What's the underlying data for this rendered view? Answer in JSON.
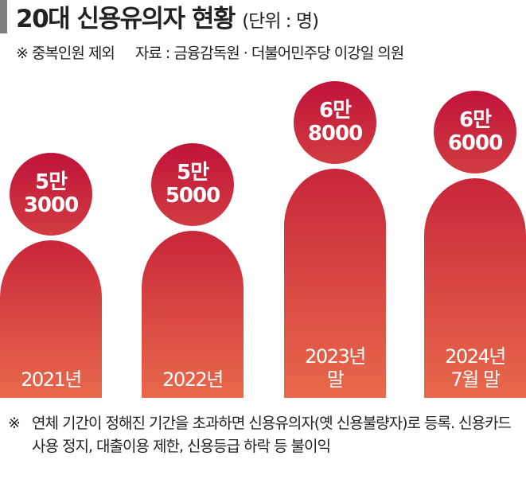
{
  "header": {
    "title": "20대 신용유의자 현황",
    "unit": "(단위 : 명)",
    "note": "※ 중복인원 제외",
    "source": "자료 : 금융감독원 · 더불어민주당 이강일 의원"
  },
  "chart_data": {
    "type": "bar",
    "title": "20대 신용유의자 현황",
    "unit": "(단위 : 명)",
    "categories": [
      "2021년",
      "2022년",
      "2023년 말",
      "2024년 7월 말"
    ],
    "category_lines": [
      [
        "2021년"
      ],
      [
        "2022년"
      ],
      [
        "2023년",
        "말"
      ],
      [
        "2024년",
        "7월 말"
      ]
    ],
    "values": [
      53000,
      55000,
      68000,
      66000
    ],
    "value_labels": [
      [
        "5만",
        "3000"
      ],
      [
        "5만",
        "5000"
      ],
      [
        "6만",
        "8000"
      ],
      [
        "6만",
        "6000"
      ]
    ],
    "colors": {
      "bar_top": "#c8263a",
      "bar_bottom": "#e8694b",
      "bubble": "#c0133a"
    }
  },
  "footnote": {
    "mark": "※",
    "text": "연체 기간이 정해진 기간을 초과하면 신용유의자(옛 신용불량자)로 등록. 신용카드 사용 정지, 대출이용 제한, 신용등급 하락 등 불이익"
  }
}
